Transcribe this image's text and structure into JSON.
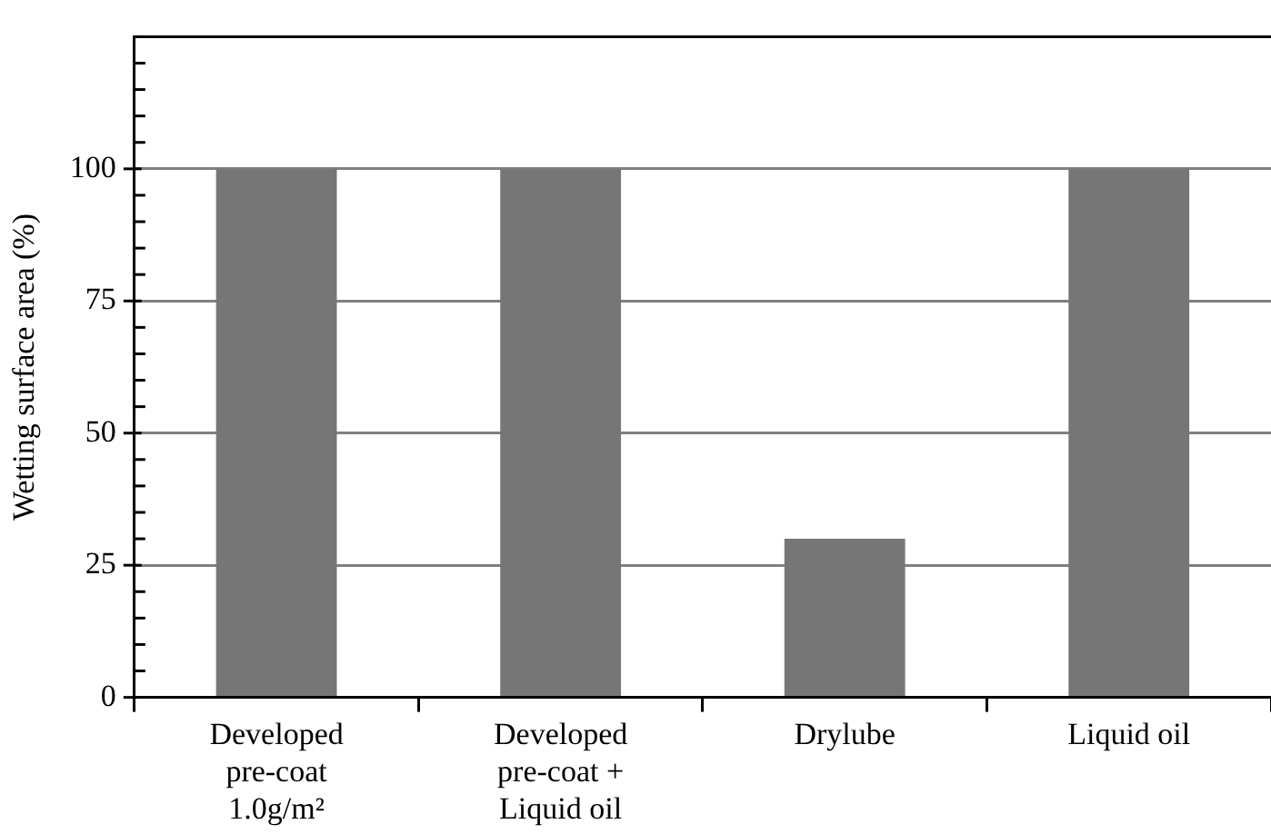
{
  "chart_data": {
    "type": "bar",
    "ylabel": "Wetting surface area (%)",
    "categories": [
      "Developed\npre-coat\n1.0g/m²",
      "Developed\npre-coat +\nLiquid oil",
      "Drylube",
      "Liquid oil"
    ],
    "values": [
      100,
      100,
      30,
      100
    ],
    "color": "#767676",
    "ylim": [
      0,
      125
    ],
    "yticks": [
      0,
      {
        "value": 5,
        "label": null
      },
      {
        "value": 10,
        "label": null
      },
      {
        "value": 15,
        "label": null
      },
      {
        "value": 20,
        "label": null
      },
      25,
      {
        "value": 30,
        "label": null
      },
      {
        "value": 35,
        "label": null
      },
      {
        "value": 40,
        "label": null
      },
      {
        "value": 45,
        "label": null
      },
      50,
      {
        "value": 55,
        "label": null
      },
      {
        "value": 60,
        "label": null
      },
      {
        "value": 65,
        "label": null
      },
      {
        "value": 70,
        "label": null
      },
      75,
      {
        "value": 80,
        "label": null
      },
      {
        "value": 85,
        "label": null
      },
      {
        "value": 90,
        "label": null
      },
      {
        "value": 95,
        "label": null
      },
      100,
      {
        "value": 105,
        "label": null
      },
      {
        "value": 110,
        "label": null
      },
      {
        "value": 115,
        "label": null
      },
      {
        "value": 120,
        "label": null
      },
      {
        "value": 125,
        "label": null
      }
    ],
    "grid": "y",
    "legend": false
  }
}
